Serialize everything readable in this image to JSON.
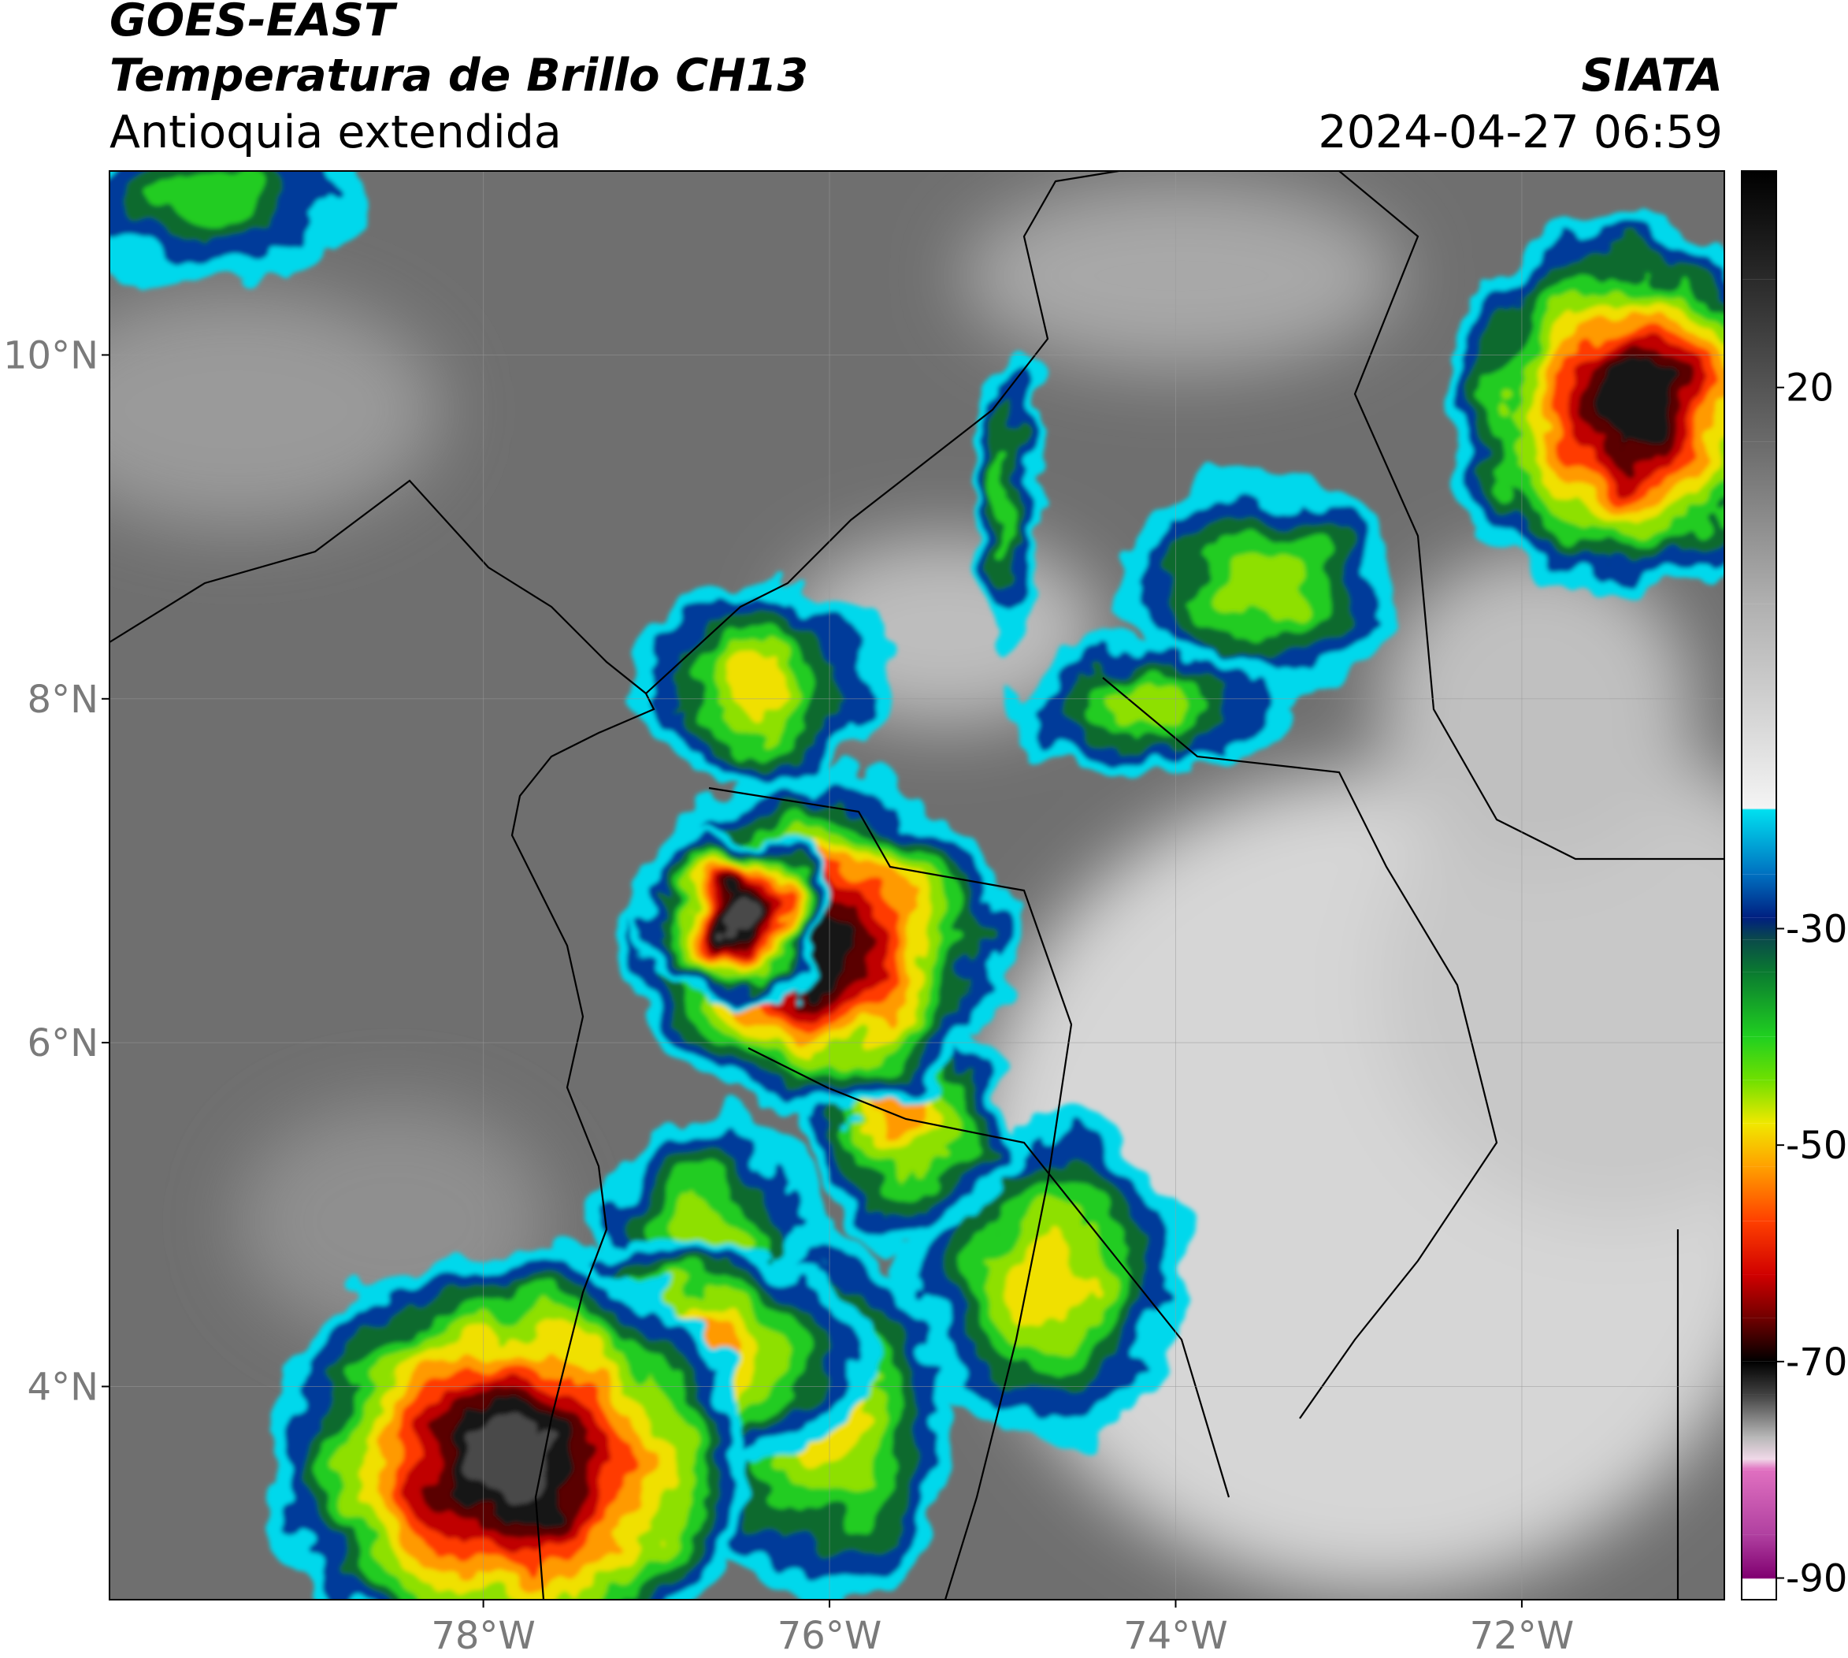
{
  "header": {
    "title": "GOES-EAST",
    "subtitle": "Temperatura de Brillo CH13",
    "region": "Antioquia extendida",
    "source": "SIATA",
    "datetime": "2024-04-27 06:59"
  },
  "map": {
    "xlim": [
      -80.16,
      -70.83
    ],
    "ylim": [
      2.76,
      11.07
    ],
    "grid": true,
    "xticks": [
      {
        "value": -78,
        "label": "78°W"
      },
      {
        "value": -76,
        "label": "76°W"
      },
      {
        "value": -74,
        "label": "74°W"
      },
      {
        "value": -72,
        "label": "72°W"
      }
    ],
    "yticks": [
      {
        "value": 4,
        "label": "4°N"
      },
      {
        "value": 6,
        "label": "6°N"
      },
      {
        "value": 8,
        "label": "8°N"
      },
      {
        "value": 10,
        "label": "10°N"
      }
    ]
  },
  "colorbar": {
    "lim": [
      -92,
      40
    ],
    "ticks": [
      20,
      -30,
      -50,
      -70,
      -90
    ],
    "stops": [
      {
        "value": 40,
        "color": "#000000"
      },
      {
        "value": 30,
        "color": "#2a2a2a"
      },
      {
        "value": 15,
        "color": "#6a6a6a"
      },
      {
        "value": 0,
        "color": "#b0b0b0"
      },
      {
        "value": -18.9,
        "color": "#f4f4f4"
      },
      {
        "value": -19,
        "color": "#00e0f0"
      },
      {
        "value": -25,
        "color": "#0070c0"
      },
      {
        "value": -29,
        "color": "#001f80"
      },
      {
        "value": -31,
        "color": "#0a4a4a"
      },
      {
        "value": -34,
        "color": "#0a7a30"
      },
      {
        "value": -40,
        "color": "#20d020"
      },
      {
        "value": -44,
        "color": "#70e000"
      },
      {
        "value": -48,
        "color": "#f0e800"
      },
      {
        "value": -52,
        "color": "#ffa000"
      },
      {
        "value": -57,
        "color": "#ff4000"
      },
      {
        "value": -62,
        "color": "#d00000"
      },
      {
        "value": -66,
        "color": "#700000"
      },
      {
        "value": -70,
        "color": "#000000"
      },
      {
        "value": -73,
        "color": "#404040"
      },
      {
        "value": -77,
        "color": "#b8b8b8"
      },
      {
        "value": -79,
        "color": "#f0d8e8"
      },
      {
        "value": -80,
        "color": "#e070c0"
      },
      {
        "value": -86,
        "color": "#b040a0"
      },
      {
        "value": -90,
        "color": "#800070"
      },
      {
        "value": -90.1,
        "color": "#ffffff"
      },
      {
        "value": -92,
        "color": "#ffffff"
      }
    ]
  }
}
